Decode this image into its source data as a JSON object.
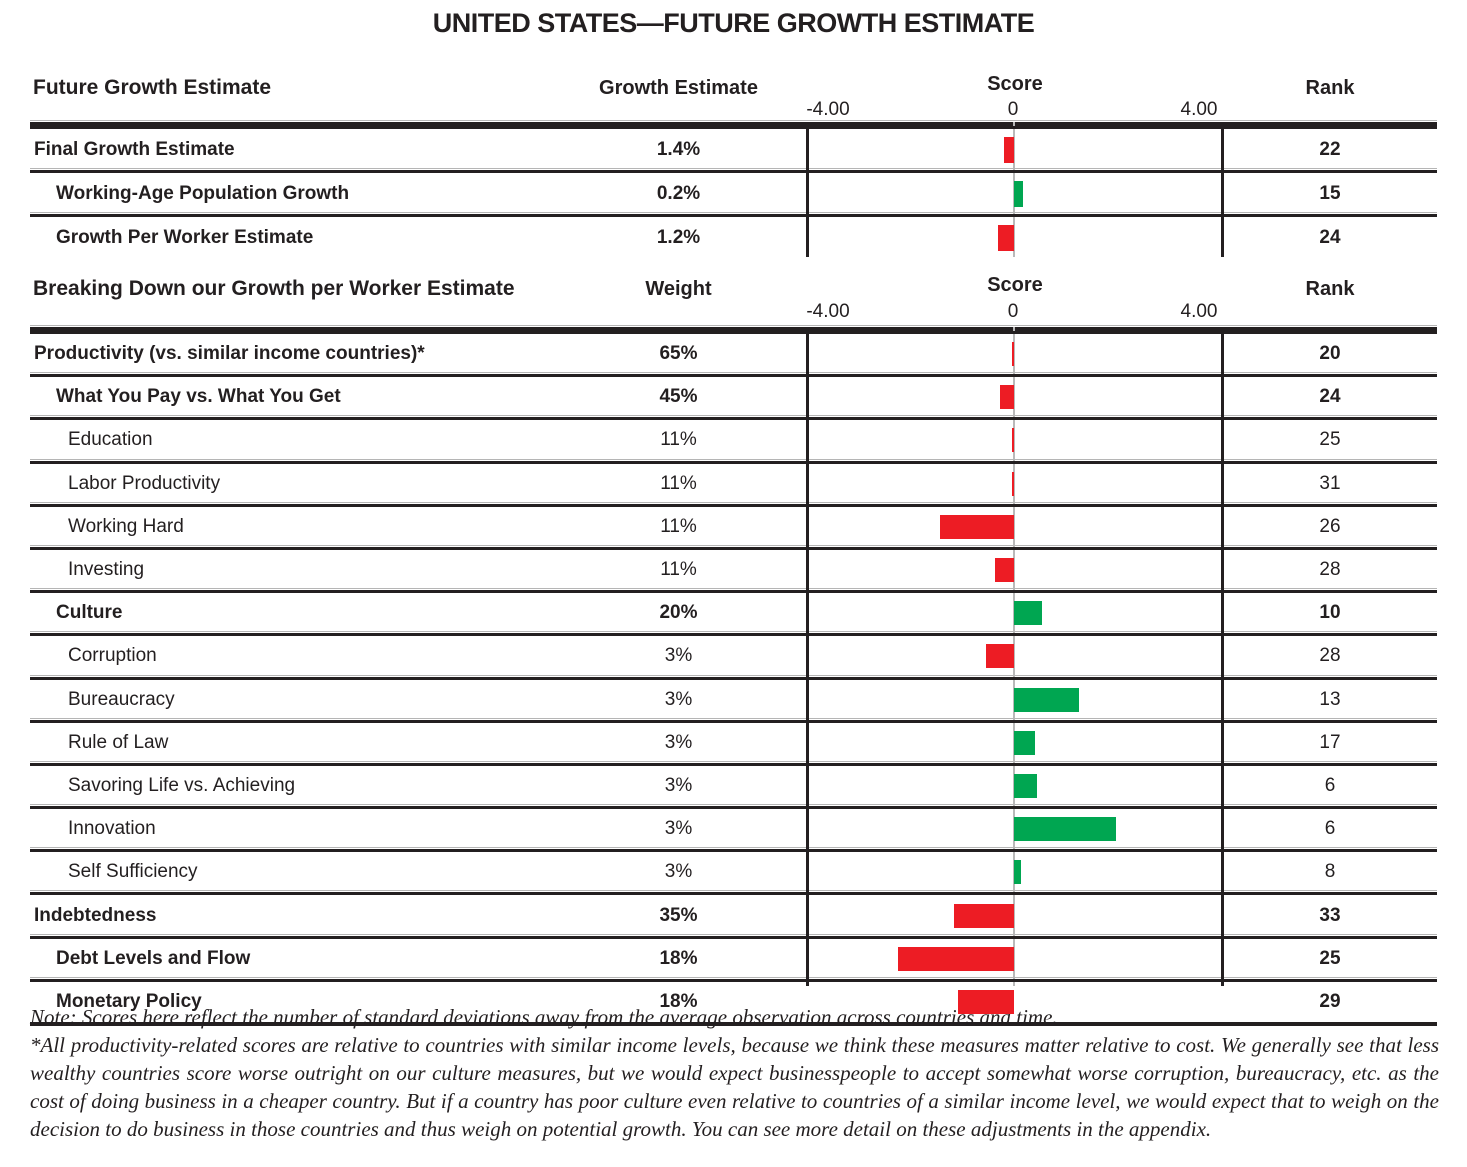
{
  "title": "UNITED STATES—FUTURE GROWTH ESTIMATE",
  "colors": {
    "red": "#ED1C24",
    "green": "#00A651",
    "line": "#231f20"
  },
  "axis": {
    "min_label": "-4.00",
    "zero_label": "0",
    "max_label": "4.00",
    "min": -4,
    "max": 4
  },
  "sections": [
    {
      "header": {
        "label": "Future Growth Estimate",
        "value_col": "Growth Estimate",
        "score_col": "Score",
        "rank_col": "Rank"
      },
      "rows": [
        {
          "label": "Final Growth Estimate",
          "value": "1.4%",
          "score": -0.22,
          "color": "red",
          "rank": "22",
          "bold": true,
          "indent": 0
        },
        {
          "label": "Working-Age Population Growth",
          "value": "0.2%",
          "score": 0.2,
          "color": "green",
          "rank": "15",
          "bold": true,
          "indent": 1
        },
        {
          "label": "Growth Per Worker Estimate",
          "value": "1.2%",
          "score": -0.35,
          "color": "red",
          "rank": "24",
          "bold": true,
          "indent": 1
        }
      ]
    },
    {
      "header": {
        "label": "Breaking Down our Growth per Worker Estimate",
        "value_col": "Weight",
        "score_col": "Score",
        "rank_col": "Rank"
      },
      "rows": [
        {
          "label": "Productivity (vs. similar income countries)*",
          "value": "65%",
          "score": -0.05,
          "color": "red",
          "rank": "20",
          "bold": true,
          "indent": 0
        },
        {
          "label": "What You Pay vs. What You Get",
          "value": "45%",
          "score": -0.3,
          "color": "red",
          "rank": "24",
          "bold": true,
          "indent": 1
        },
        {
          "label": "Education",
          "value": "11%",
          "score": -0.05,
          "color": "red",
          "rank": "25",
          "bold": false,
          "indent": 2
        },
        {
          "label": "Labor Productivity",
          "value": "11%",
          "score": -0.05,
          "color": "red",
          "rank": "31",
          "bold": false,
          "indent": 2
        },
        {
          "label": "Working Hard",
          "value": "11%",
          "score": -1.6,
          "color": "red",
          "rank": "26",
          "bold": false,
          "indent": 2
        },
        {
          "label": "Investing",
          "value": "11%",
          "score": -0.4,
          "color": "red",
          "rank": "28",
          "bold": false,
          "indent": 2
        },
        {
          "label": "Culture",
          "value": "20%",
          "score": 0.6,
          "color": "green",
          "rank": "10",
          "bold": true,
          "indent": 1
        },
        {
          "label": "Corruption",
          "value": "3%",
          "score": -0.6,
          "color": "red",
          "rank": "28",
          "bold": false,
          "indent": 2
        },
        {
          "label": "Bureaucracy",
          "value": "3%",
          "score": 1.4,
          "color": "green",
          "rank": "13",
          "bold": false,
          "indent": 2
        },
        {
          "label": "Rule of Law",
          "value": "3%",
          "score": 0.45,
          "color": "green",
          "rank": "17",
          "bold": false,
          "indent": 2
        },
        {
          "label": "Savoring Life vs. Achieving",
          "value": "3%",
          "score": 0.5,
          "color": "green",
          "rank": "6",
          "bold": false,
          "indent": 2
        },
        {
          "label": "Innovation",
          "value": "3%",
          "score": 2.2,
          "color": "green",
          "rank": "6",
          "bold": false,
          "indent": 2
        },
        {
          "label": "Self Sufficiency",
          "value": "3%",
          "score": 0.15,
          "color": "green",
          "rank": "8",
          "bold": false,
          "indent": 2
        },
        {
          "label": "Indebtedness",
          "value": "35%",
          "score": -1.3,
          "color": "red",
          "rank": "33",
          "bold": true,
          "indent": 0
        },
        {
          "label": "Debt Levels and Flow",
          "value": "18%",
          "score": -2.5,
          "color": "red",
          "rank": "25",
          "bold": true,
          "indent": 1
        },
        {
          "label": "Monetary Policy",
          "value": "18%",
          "score": -1.2,
          "color": "red",
          "rank": "29",
          "bold": true,
          "indent": 1
        }
      ]
    }
  ],
  "notes": {
    "line1": "Note: Scores here reflect the number of standard deviations away from the average observation across countries and time.",
    "paragraph": "*All productivity-related scores are relative to countries with similar income levels, because we think these measures matter relative to cost. We generally see that less wealthy countries score worse outright on our culture measures, but we would expect businesspeople to accept somewhat worse corruption, bureaucracy, etc. as the cost of doing business in a cheaper country. But if a country has poor culture even relative to countries of a similar income level, we would expect that to weigh on the decision to do business in those countries and thus weigh on potential growth. You can see more detail on these adjustments in the appendix."
  },
  "chart_data": {
    "type": "bar",
    "orientation": "horizontal",
    "title": "UNITED STATES—FUTURE GROWTH ESTIMATE",
    "xlabel": "Score",
    "xlim": [
      -4,
      4
    ],
    "x_ticks": [
      -4,
      0,
      4
    ],
    "grid": "zero-line-only",
    "positive_color": "#00A651",
    "negative_color": "#ED1C24",
    "series": [
      {
        "name": "Future Growth Estimate",
        "categories": [
          "Final Growth Estimate",
          "Working-Age Population Growth",
          "Growth Per Worker Estimate"
        ],
        "values": [
          -0.22,
          0.2,
          -0.35
        ],
        "growth_estimates": [
          "1.4%",
          "0.2%",
          "1.2%"
        ],
        "ranks": [
          22,
          15,
          24
        ]
      },
      {
        "name": "Breaking Down our Growth per Worker Estimate",
        "categories": [
          "Productivity (vs. similar income countries)*",
          "What You Pay vs. What You Get",
          "Education",
          "Labor Productivity",
          "Working Hard",
          "Investing",
          "Culture",
          "Corruption",
          "Bureaucracy",
          "Rule of Law",
          "Savoring Life vs. Achieving",
          "Innovation",
          "Self Sufficiency",
          "Indebtedness",
          "Debt Levels and Flow",
          "Monetary Policy"
        ],
        "values": [
          -0.05,
          -0.3,
          -0.05,
          -0.05,
          -1.6,
          -0.4,
          0.6,
          -0.6,
          1.4,
          0.45,
          0.5,
          2.2,
          0.15,
          -1.3,
          -2.5,
          -1.2
        ],
        "weights": [
          "65%",
          "45%",
          "11%",
          "11%",
          "11%",
          "11%",
          "20%",
          "3%",
          "3%",
          "3%",
          "3%",
          "3%",
          "3%",
          "35%",
          "18%",
          "18%"
        ],
        "ranks": [
          20,
          24,
          25,
          31,
          26,
          28,
          10,
          28,
          13,
          17,
          6,
          6,
          8,
          33,
          25,
          29
        ]
      }
    ]
  }
}
